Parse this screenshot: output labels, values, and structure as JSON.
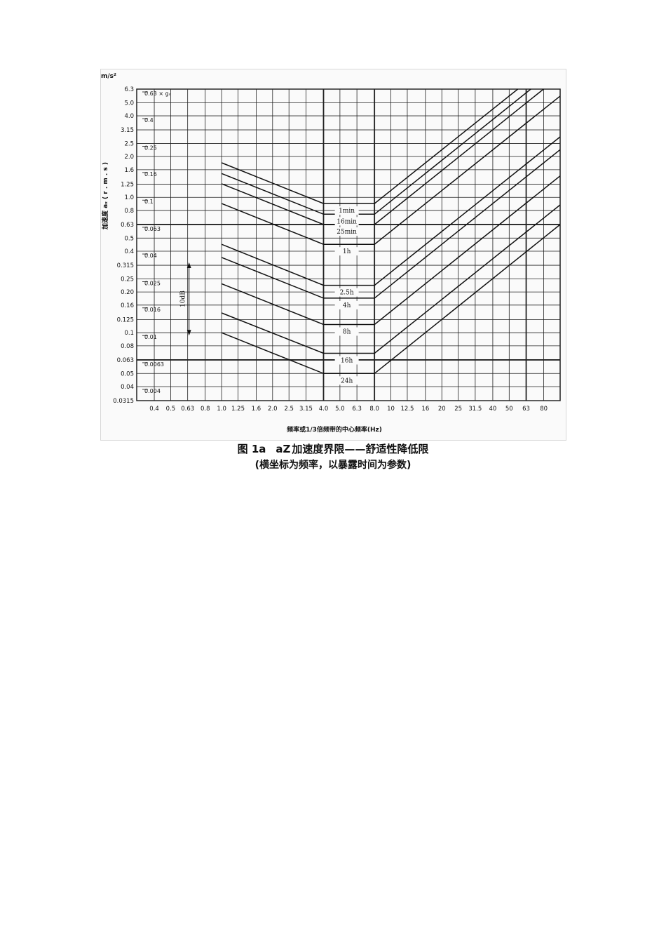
{
  "caption": {
    "figure_number": "图 1a",
    "variable": "aZ",
    "title": "加速度界限——舒适性降低限",
    "subtitle": "(横坐标为频率，以暴露时间为参数)"
  },
  "chart_data": {
    "type": "line",
    "title": "",
    "xlabel": "频率或1/3倍频带的中心频率(Hz)",
    "ylabel": "加速度 aₓ ( r . m . s )",
    "y_unit": "m/s²",
    "x_scale": "log",
    "y_scale": "log",
    "xlim": [
      0.315,
      100
    ],
    "ylim": [
      0.0315,
      6.3
    ],
    "x_ticks": [
      "0.4",
      "0.5",
      "0.63",
      "0.8",
      "1.0",
      "1.25",
      "1.6",
      "2.0",
      "2.5",
      "3.15",
      "4.0",
      "5.0",
      "6.3",
      "8.0",
      "10",
      "12.5",
      "16",
      "20",
      "25",
      "31.5",
      "40",
      "50",
      "63",
      "80"
    ],
    "y_ticks": [
      "6.3",
      "5.0",
      "4.0",
      "3.15",
      "2.5",
      "2.0",
      "1.6",
      "1.25",
      "1.0",
      "0.8",
      "0.63",
      "0.5",
      "0.4",
      "0.315",
      "0.25",
      "0.20",
      "0.16",
      "0.125",
      "0.1",
      "0.08",
      "0.063",
      "0.05",
      "0.04",
      "0.0315"
    ],
    "g_ticks": [
      {
        "label": "0.63 × gₙ",
        "y": 6.3
      },
      {
        "label": "0.4",
        "y": 4.0
      },
      {
        "label": "0.25",
        "y": 2.5
      },
      {
        "label": "0.16",
        "y": 1.6
      },
      {
        "label": "0.1",
        "y": 1.0
      },
      {
        "label": "0.063",
        "y": 0.63
      },
      {
        "label": "0.04",
        "y": 0.4
      },
      {
        "label": "0.025",
        "y": 0.25
      },
      {
        "label": "0.016",
        "y": 0.16
      },
      {
        "label": "0.01",
        "y": 0.1
      },
      {
        "label": "0.0063",
        "y": 0.063
      },
      {
        "label": "0.004",
        "y": 0.04
      }
    ],
    "db_annotation": {
      "label": "10dB",
      "y_top": 0.315,
      "y_bottom": 0.1
    },
    "grid": true,
    "emphasized_gridlines_y": [
      0.63,
      0.063
    ],
    "emphasized_gridlines_x": [
      4.0,
      8.0,
      63
    ],
    "series": [
      {
        "name": "1min",
        "x": [
          1.0,
          4.0,
          8.0,
          100
        ],
        "y": [
          1.8,
          0.9,
          0.9,
          11.2
        ]
      },
      {
        "name": "16min",
        "x": [
          1.0,
          4.0,
          8.0,
          100
        ],
        "y": [
          1.5,
          0.75,
          0.75,
          9.4
        ]
      },
      {
        "name": "25min",
        "x": [
          1.0,
          4.0,
          8.0,
          100
        ],
        "y": [
          1.26,
          0.63,
          0.63,
          7.9
        ]
      },
      {
        "name": "1h",
        "x": [
          1.0,
          4.0,
          8.0,
          100
        ],
        "y": [
          0.9,
          0.45,
          0.45,
          5.6
        ]
      },
      {
        "name": "2.5h",
        "x": [
          1.0,
          4.0,
          8.0,
          100
        ],
        "y": [
          0.45,
          0.224,
          0.224,
          2.8
        ]
      },
      {
        "name": "4h",
        "x": [
          1.0,
          4.0,
          8.0,
          100
        ],
        "y": [
          0.36,
          0.18,
          0.18,
          2.25
        ]
      },
      {
        "name": "8h",
        "x": [
          1.0,
          4.0,
          8.0,
          100
        ],
        "y": [
          0.23,
          0.115,
          0.115,
          1.44
        ]
      },
      {
        "name": "16h",
        "x": [
          1.0,
          4.0,
          8.0,
          100
        ],
        "y": [
          0.14,
          0.0705,
          0.0705,
          0.88
        ]
      },
      {
        "name": "24h",
        "x": [
          1.0,
          4.0,
          8.0,
          100
        ],
        "y": [
          0.1,
          0.05,
          0.05,
          0.63
        ]
      }
    ]
  }
}
